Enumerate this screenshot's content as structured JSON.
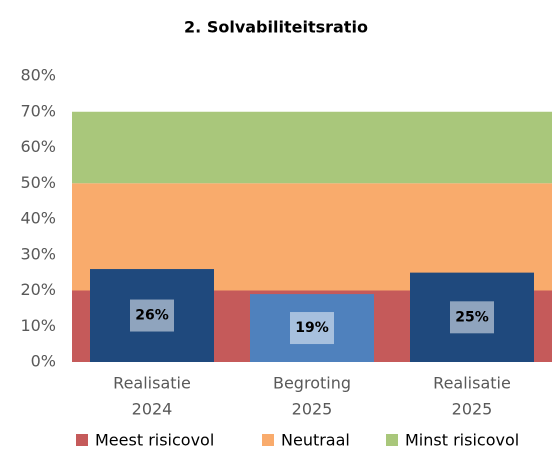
{
  "chart_data": {
    "type": "bar",
    "title": "2. Solvabiliteitsratio",
    "categories": [
      [
        "Realisatie",
        "2024"
      ],
      [
        "Begroting",
        "2025"
      ],
      [
        "Realisatie",
        "2025"
      ]
    ],
    "values": [
      26,
      19,
      25
    ],
    "value_labels": [
      "26%",
      "19%",
      "25%"
    ],
    "colors": [
      "#1f497d",
      "#4f81bd",
      "#1f497d"
    ],
    "bands": [
      {
        "name": "Meest risicovol",
        "color": "#c55a5a",
        "value": 20
      },
      {
        "name": "Neutraal",
        "color": "#f9ab6c",
        "value": 30
      },
      {
        "name": "Minst risicovol",
        "color": "#a9c77b",
        "value": 20
      }
    ],
    "ylim": [
      0,
      80
    ],
    "yticks": [
      {
        "value": 0,
        "label": "0%"
      },
      {
        "value": 10,
        "label": "10%"
      },
      {
        "value": 20,
        "label": "20%"
      },
      {
        "value": 30,
        "label": "30%"
      },
      {
        "value": 40,
        "label": "40%"
      },
      {
        "value": 50,
        "label": "50%"
      },
      {
        "value": 60,
        "label": "60%"
      },
      {
        "value": 70,
        "label": "70%"
      },
      {
        "value": 80,
        "label": "80%"
      }
    ],
    "legend": "bottom"
  }
}
